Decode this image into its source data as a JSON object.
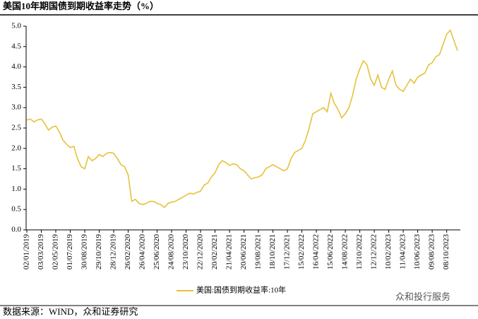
{
  "chart_data": {
    "type": "line",
    "title": "美国10年期国债到期收益率走势（%）",
    "source": "数据来源：WIND，众和证券研究",
    "watermark": "众和投行服务",
    "categories": [
      "02/01/2019",
      null,
      null,
      null,
      "03/03/2019",
      null,
      null,
      null,
      "02/05/2019",
      null,
      null,
      null,
      "01/07/2019",
      null,
      null,
      null,
      "30/08/2019",
      null,
      null,
      null,
      "29/10/2019",
      null,
      null,
      null,
      "28/12/2019",
      null,
      null,
      null,
      "26/02/2020",
      null,
      null,
      null,
      "26/04/2020",
      null,
      null,
      null,
      "25/06/2020",
      null,
      null,
      null,
      "24/08/2020",
      null,
      null,
      null,
      "23/10/2020",
      null,
      null,
      null,
      "22/12/2020",
      null,
      null,
      null,
      "20/02/2021",
      null,
      null,
      null,
      "21/04/2021",
      null,
      null,
      null,
      "20/06/2021",
      null,
      null,
      null,
      "19/08/2021",
      null,
      null,
      null,
      "18/10/2021",
      null,
      null,
      null,
      "17/12/2021",
      null,
      null,
      null,
      "15/02/2022",
      null,
      null,
      null,
      "16/04/2022",
      null,
      null,
      null,
      "15/06/2022",
      null,
      null,
      null,
      "14/08/2022",
      null,
      null,
      null,
      "13/10/2022",
      null,
      null,
      null,
      "12/12/2022",
      null,
      null,
      null,
      "10/02/2023",
      null,
      null,
      null,
      "11/04/2023",
      null,
      null,
      null,
      "10/06/2023",
      null,
      null,
      null,
      "09/08/2023",
      null,
      null,
      null,
      "08/10/2023",
      null,
      null,
      null
    ],
    "series": [
      {
        "name": "美国:国债到期收益率:10年",
        "color": "#e5c23a",
        "values": [
          2.7,
          2.72,
          2.65,
          2.7,
          2.72,
          2.6,
          2.45,
          2.52,
          2.55,
          2.4,
          2.2,
          2.1,
          2.02,
          2.05,
          1.75,
          1.55,
          1.5,
          1.8,
          1.7,
          1.75,
          1.85,
          1.8,
          1.88,
          1.9,
          1.88,
          1.75,
          1.6,
          1.55,
          1.35,
          0.7,
          0.75,
          0.65,
          0.62,
          0.65,
          0.7,
          0.7,
          0.65,
          0.62,
          0.55,
          0.65,
          0.68,
          0.7,
          0.75,
          0.8,
          0.85,
          0.9,
          0.88,
          0.92,
          0.95,
          1.1,
          1.15,
          1.3,
          1.4,
          1.6,
          1.7,
          1.65,
          1.58,
          1.62,
          1.6,
          1.5,
          1.45,
          1.35,
          1.25,
          1.28,
          1.3,
          1.35,
          1.5,
          1.55,
          1.6,
          1.55,
          1.5,
          1.45,
          1.5,
          1.75,
          1.9,
          1.95,
          2.0,
          2.2,
          2.5,
          2.85,
          2.9,
          2.95,
          3.0,
          2.9,
          3.35,
          3.1,
          2.95,
          2.75,
          2.85,
          3.0,
          3.3,
          3.7,
          3.95,
          4.15,
          4.05,
          3.7,
          3.55,
          3.8,
          3.5,
          3.45,
          3.7,
          3.9,
          3.55,
          3.45,
          3.4,
          3.55,
          3.7,
          3.6,
          3.75,
          3.8,
          3.85,
          4.05,
          4.1,
          4.25,
          4.3,
          4.55,
          4.8,
          4.9,
          4.65,
          4.4
        ]
      }
    ],
    "ylim": [
      0,
      5
    ],
    "yticks": [
      {
        "value": 0,
        "label": "0.0"
      },
      {
        "value": 0.5,
        "label": "0.5"
      },
      {
        "value": 1,
        "label": "1.0"
      },
      {
        "value": 1.5,
        "label": "1.5"
      },
      {
        "value": 2,
        "label": "2.0"
      },
      {
        "value": 2.5,
        "label": "2.5"
      },
      {
        "value": 3,
        "label": "3.0"
      },
      {
        "value": 3.5,
        "label": "3.5"
      },
      {
        "value": 4,
        "label": "4.0"
      },
      {
        "value": 4.5,
        "label": "4.5"
      },
      {
        "value": 5,
        "label": "5.0"
      }
    ],
    "grid": false
  }
}
